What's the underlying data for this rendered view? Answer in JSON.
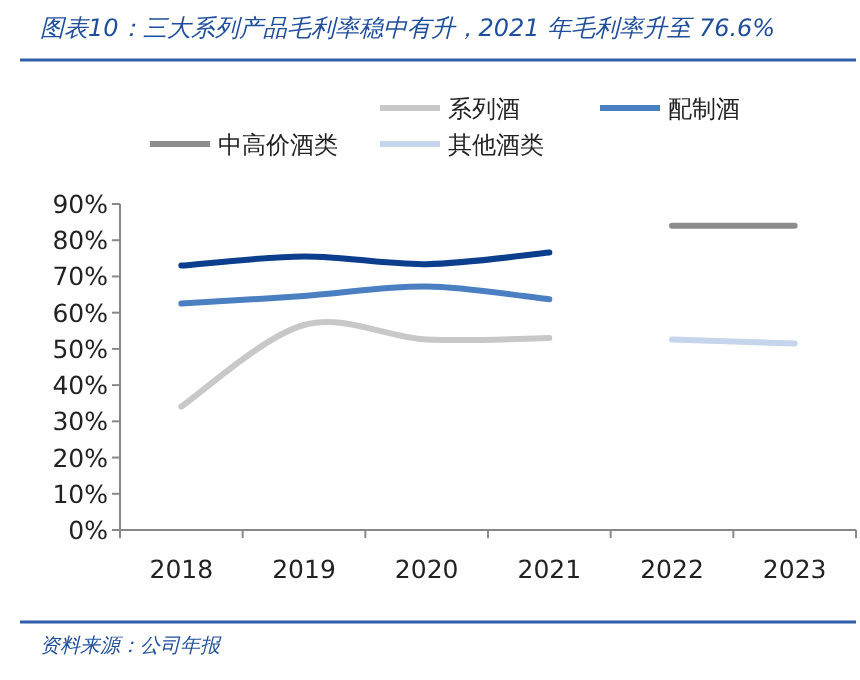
{
  "chart_data": {
    "type": "line",
    "title": "图表10：三大系列产品毛利率稳中有升，2021 年毛利率升至 76.6%",
    "categories": [
      "2018",
      "2019",
      "2020",
      "2021",
      "2022",
      "2023"
    ],
    "series": [
      {
        "color": "#0b3e8c",
        "values": [
          73,
          75.5,
          73.4,
          76.6,
          null,
          null
        ]
      },
      {
        "name": "系列酒",
        "color": "#c8c8c8",
        "values": [
          34.1,
          56.6,
          52.6,
          53,
          null,
          null
        ]
      },
      {
        "name": "配制酒",
        "color": "#4a7fc1",
        "values": [
          62.5,
          64.6,
          67.2,
          63.7,
          null,
          null
        ]
      },
      {
        "name": "中高价酒类",
        "color": "#8c8c8c",
        "values": [
          null,
          null,
          null,
          null,
          84,
          84
        ]
      },
      {
        "name": "其他酒类",
        "color": "#c5d5ec",
        "values": [
          null,
          null,
          null,
          null,
          52.6,
          51.5
        ]
      }
    ],
    "ylim": [
      0,
      90
    ],
    "yticks": [
      {
        "value": 0,
        "label": "0%"
      },
      {
        "value": 10,
        "label": "10%"
      },
      {
        "value": 20,
        "label": "20%"
      },
      {
        "value": 30,
        "label": "30%"
      },
      {
        "value": 40,
        "label": "40%"
      },
      {
        "value": 50,
        "label": "50%"
      },
      {
        "value": 60,
        "label": "60%"
      },
      {
        "value": 70,
        "label": "70%"
      },
      {
        "value": 80,
        "label": "80%"
      },
      {
        "value": 90,
        "label": "90%"
      }
    ],
    "legend": "top",
    "grid": false,
    "annotations": [
      "资料来源：公司年报"
    ]
  }
}
